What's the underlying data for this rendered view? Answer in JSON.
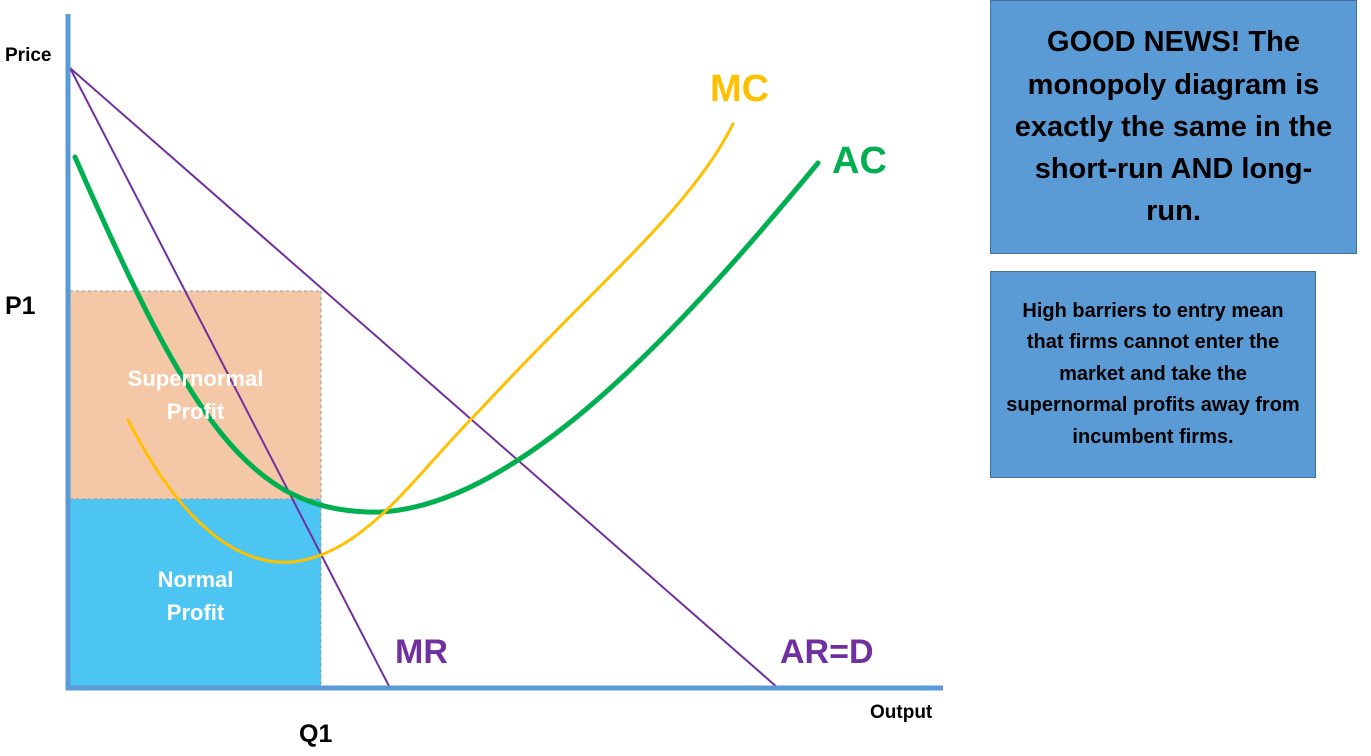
{
  "axes": {
    "y_label": "Price",
    "x_label": "Output",
    "price_marker": "P1",
    "quantity_marker": "Q1"
  },
  "curves": {
    "mc_label": "MC",
    "ac_label": "AC",
    "mr_label": "MR",
    "ard_label": "AR=D"
  },
  "areas": {
    "supernormal_line1": "Supernormal",
    "supernormal_line2": "Profit",
    "normal_line1": "Normal",
    "normal_line2": "Profit"
  },
  "notes": {
    "good_news": "GOOD NEWS! The monopoly diagram is exactly the same in the short-run AND long-run.",
    "barriers": "High barriers to entry mean that firms cannot enter the market and take the supernormal profits away from incumbent firms."
  },
  "colors": {
    "axis": "#5b9bd5",
    "demand_mr": "#7030a0",
    "mc": "#ffc000",
    "ac": "#00b050",
    "supernormal_fill": "#f4c7a6",
    "normal_fill": "#4cc5f2",
    "note_fill": "#5b9bd5"
  }
}
